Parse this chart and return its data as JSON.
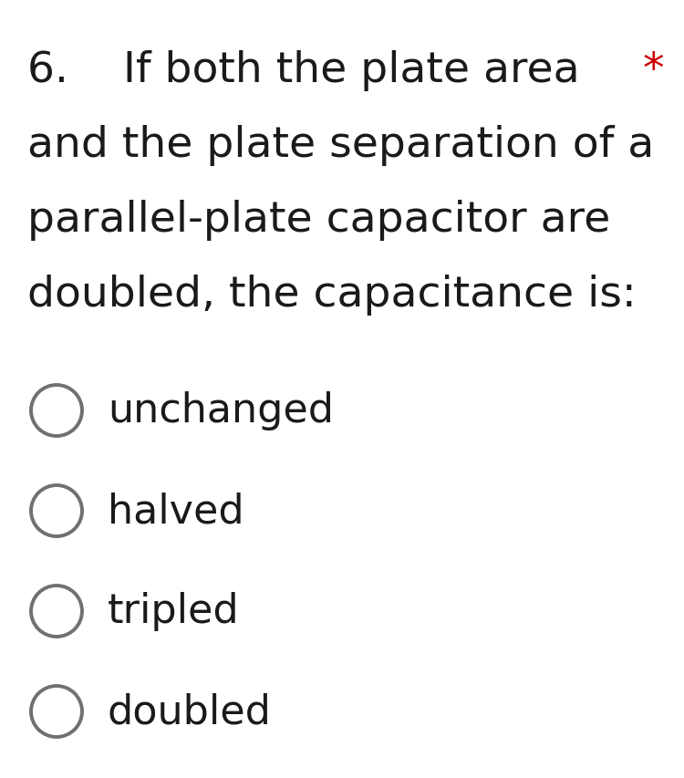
{
  "background_color": "#ffffff",
  "question_number": "6.",
  "question_indent": "    ",
  "question_text_lines": [
    "If both the plate area",
    "and the plate separation of a",
    "parallel-plate capacitor are",
    "doubled, the capacitance is:"
  ],
  "asterisk": "*",
  "asterisk_color": "#cc0000",
  "options": [
    "unchanged",
    "halved",
    "tripled",
    "doubled"
  ],
  "text_color": "#1a1a1a",
  "circle_edge_color": "#707070",
  "circle_linewidth": 2.8,
  "question_fontsize": 34,
  "option_fontsize": 32,
  "font_family": "DejaVu Sans",
  "fig_width": 7.5,
  "fig_height": 8.54,
  "dpi": 100
}
